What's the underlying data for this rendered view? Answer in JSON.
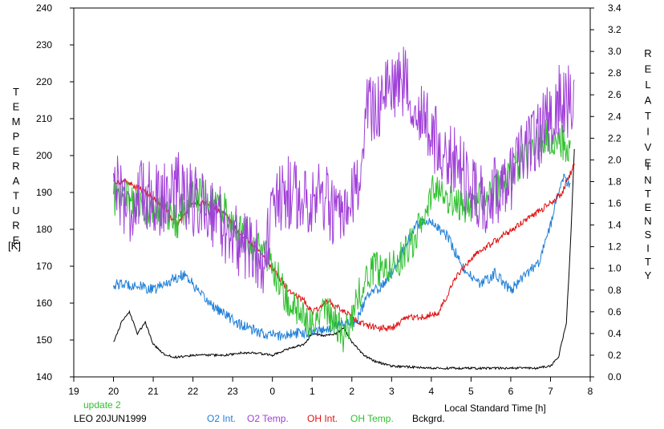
{
  "chart_data": {
    "type": "line",
    "x_ticks": [
      "19",
      "20",
      "21",
      "22",
      "23",
      "0",
      "1",
      "2",
      "3",
      "4",
      "5",
      "6",
      "7",
      "8"
    ],
    "y_left_ticks": [
      "240",
      "230",
      "220",
      "210",
      "200",
      "190",
      "180",
      "170",
      "160",
      "150",
      "140"
    ],
    "y_right_ticks": [
      "3.4",
      "3.2",
      "3.0",
      "2.8",
      "2.6",
      "2.4",
      "2.2",
      "2.0",
      "1.8",
      "1.6",
      "1.4",
      "1.2",
      "1.0",
      "0.8",
      "0.6",
      "0.4",
      "0.2",
      "0.0"
    ],
    "ylim_left": [
      140,
      240
    ],
    "ylim_right": [
      0.0,
      3.4
    ],
    "xlim_hours_from_19": [
      0,
      13
    ],
    "ylabel_left_letters": [
      "T",
      "E",
      "M",
      "P",
      "E",
      "R",
      "A",
      "T",
      "U",
      "R",
      "E"
    ],
    "ylabel_left_unit": "[K]",
    "ylabel_right_word1": [
      "R",
      "E",
      "L",
      "A",
      "T",
      "I",
      "V",
      "E"
    ],
    "ylabel_right_word2": [
      "I",
      "N",
      "T",
      "E",
      "N",
      "S",
      "I",
      "T",
      "Y"
    ],
    "xlabel": "Local Standard Time [h]",
    "annotation_update": "update 2",
    "annotation_station": "LEO 20JUN1999",
    "grid": false,
    "legend_placement": "bottom",
    "series": [
      {
        "name": "O2 Int.",
        "color": "#1f7fd8",
        "axis": "right",
        "noise": 0.05,
        "x": [
          20.0,
          20.5,
          21.0,
          21.5,
          21.8,
          22.2,
          22.7,
          23.2,
          23.7,
          24.2,
          24.6,
          25.0,
          25.4,
          25.8,
          26.1,
          26.4,
          26.8,
          27.2,
          27.6,
          27.9,
          28.4,
          28.8,
          29.2,
          29.6,
          30.0,
          30.4,
          30.7,
          31.0,
          31.3,
          31.5
        ],
        "y": [
          0.85,
          0.85,
          0.8,
          0.9,
          0.95,
          0.75,
          0.6,
          0.48,
          0.4,
          0.38,
          0.4,
          0.42,
          0.45,
          0.5,
          0.5,
          0.75,
          0.85,
          1.1,
          1.4,
          1.45,
          1.3,
          1.0,
          0.85,
          0.95,
          0.8,
          0.95,
          1.05,
          1.4,
          1.85,
          1.75
        ]
      },
      {
        "name": "O2 Temp.",
        "color": "#a040d8",
        "axis": "left",
        "noise": 10,
        "x": [
          20.0,
          20.4,
          20.8,
          21.2,
          21.6,
          22.0,
          22.5,
          23.0,
          23.4,
          23.8,
          24.0,
          24.4,
          24.8,
          25.2,
          25.5,
          25.8,
          26.1,
          26.4,
          26.8,
          27.2,
          27.6,
          28.0,
          28.4,
          28.8,
          29.2,
          29.6,
          30.0,
          30.4,
          30.8,
          31.2,
          31.4,
          31.6
        ],
        "y": [
          195,
          185,
          190,
          188,
          192,
          188,
          185,
          178,
          175,
          172,
          185,
          190,
          188,
          190,
          185,
          180,
          190,
          212,
          215,
          222,
          215,
          205,
          200,
          195,
          188,
          190,
          195,
          200,
          208,
          215,
          215,
          213
        ]
      },
      {
        "name": "OH Int.",
        "color": "#e01010",
        "axis": "right",
        "noise": 0.03,
        "x": [
          20.0,
          20.3,
          20.8,
          21.2,
          21.6,
          22.0,
          22.4,
          22.8,
          23.2,
          23.6,
          24.0,
          24.4,
          24.8,
          25.0,
          25.4,
          25.8,
          26.2,
          26.6,
          27.0,
          27.4,
          27.8,
          28.2,
          28.6,
          29.0,
          29.4,
          29.8,
          30.2,
          30.6,
          31.0,
          31.3,
          31.4,
          31.6
        ],
        "y": [
          1.8,
          1.8,
          1.7,
          1.6,
          1.4,
          1.6,
          1.6,
          1.5,
          1.3,
          1.2,
          1.0,
          0.8,
          0.7,
          0.6,
          0.7,
          0.6,
          0.5,
          0.45,
          0.45,
          0.55,
          0.55,
          0.6,
          0.9,
          1.1,
          1.2,
          1.3,
          1.4,
          1.5,
          1.6,
          1.7,
          1.8,
          1.95
        ]
      },
      {
        "name": "OH Temp.",
        "color": "#30c030",
        "axis": "left",
        "noise": 5,
        "x": [
          20.0,
          20.3,
          20.8,
          21.2,
          21.6,
          22.0,
          22.4,
          22.8,
          23.2,
          23.6,
          24.0,
          24.4,
          24.8,
          25.2,
          25.6,
          25.8,
          26.1,
          26.4,
          26.8,
          27.2,
          27.6,
          27.9,
          28.0,
          28.4,
          28.8,
          29.2,
          29.6,
          30.0,
          30.4,
          30.8,
          31.2,
          31.5
        ],
        "y": [
          188,
          190,
          185,
          185,
          182,
          190,
          188,
          185,
          180,
          175,
          170,
          160,
          155,
          158,
          155,
          150,
          160,
          168,
          170,
          172,
          178,
          185,
          190,
          188,
          186,
          188,
          190,
          195,
          200,
          205,
          205,
          200
        ]
      },
      {
        "name": "Bckgrd.",
        "color": "#000000",
        "axis": "right",
        "noise": 0.01,
        "x": [
          20.0,
          20.2,
          20.4,
          20.6,
          20.8,
          21.0,
          21.3,
          21.6,
          22.0,
          22.4,
          22.8,
          23.2,
          23.6,
          24.0,
          24.4,
          24.8,
          25.0,
          25.3,
          25.6,
          25.8,
          26.0,
          26.3,
          26.6,
          27.0,
          27.5,
          28.0,
          29.0,
          30.0,
          30.6,
          31.0,
          31.2,
          31.4,
          31.5,
          31.6
        ],
        "y": [
          0.32,
          0.5,
          0.6,
          0.4,
          0.5,
          0.3,
          0.2,
          0.18,
          0.2,
          0.2,
          0.2,
          0.22,
          0.22,
          0.2,
          0.26,
          0.3,
          0.4,
          0.38,
          0.4,
          0.45,
          0.32,
          0.2,
          0.14,
          0.1,
          0.09,
          0.08,
          0.08,
          0.08,
          0.08,
          0.1,
          0.18,
          0.5,
          1.2,
          2.1
        ]
      }
    ]
  }
}
